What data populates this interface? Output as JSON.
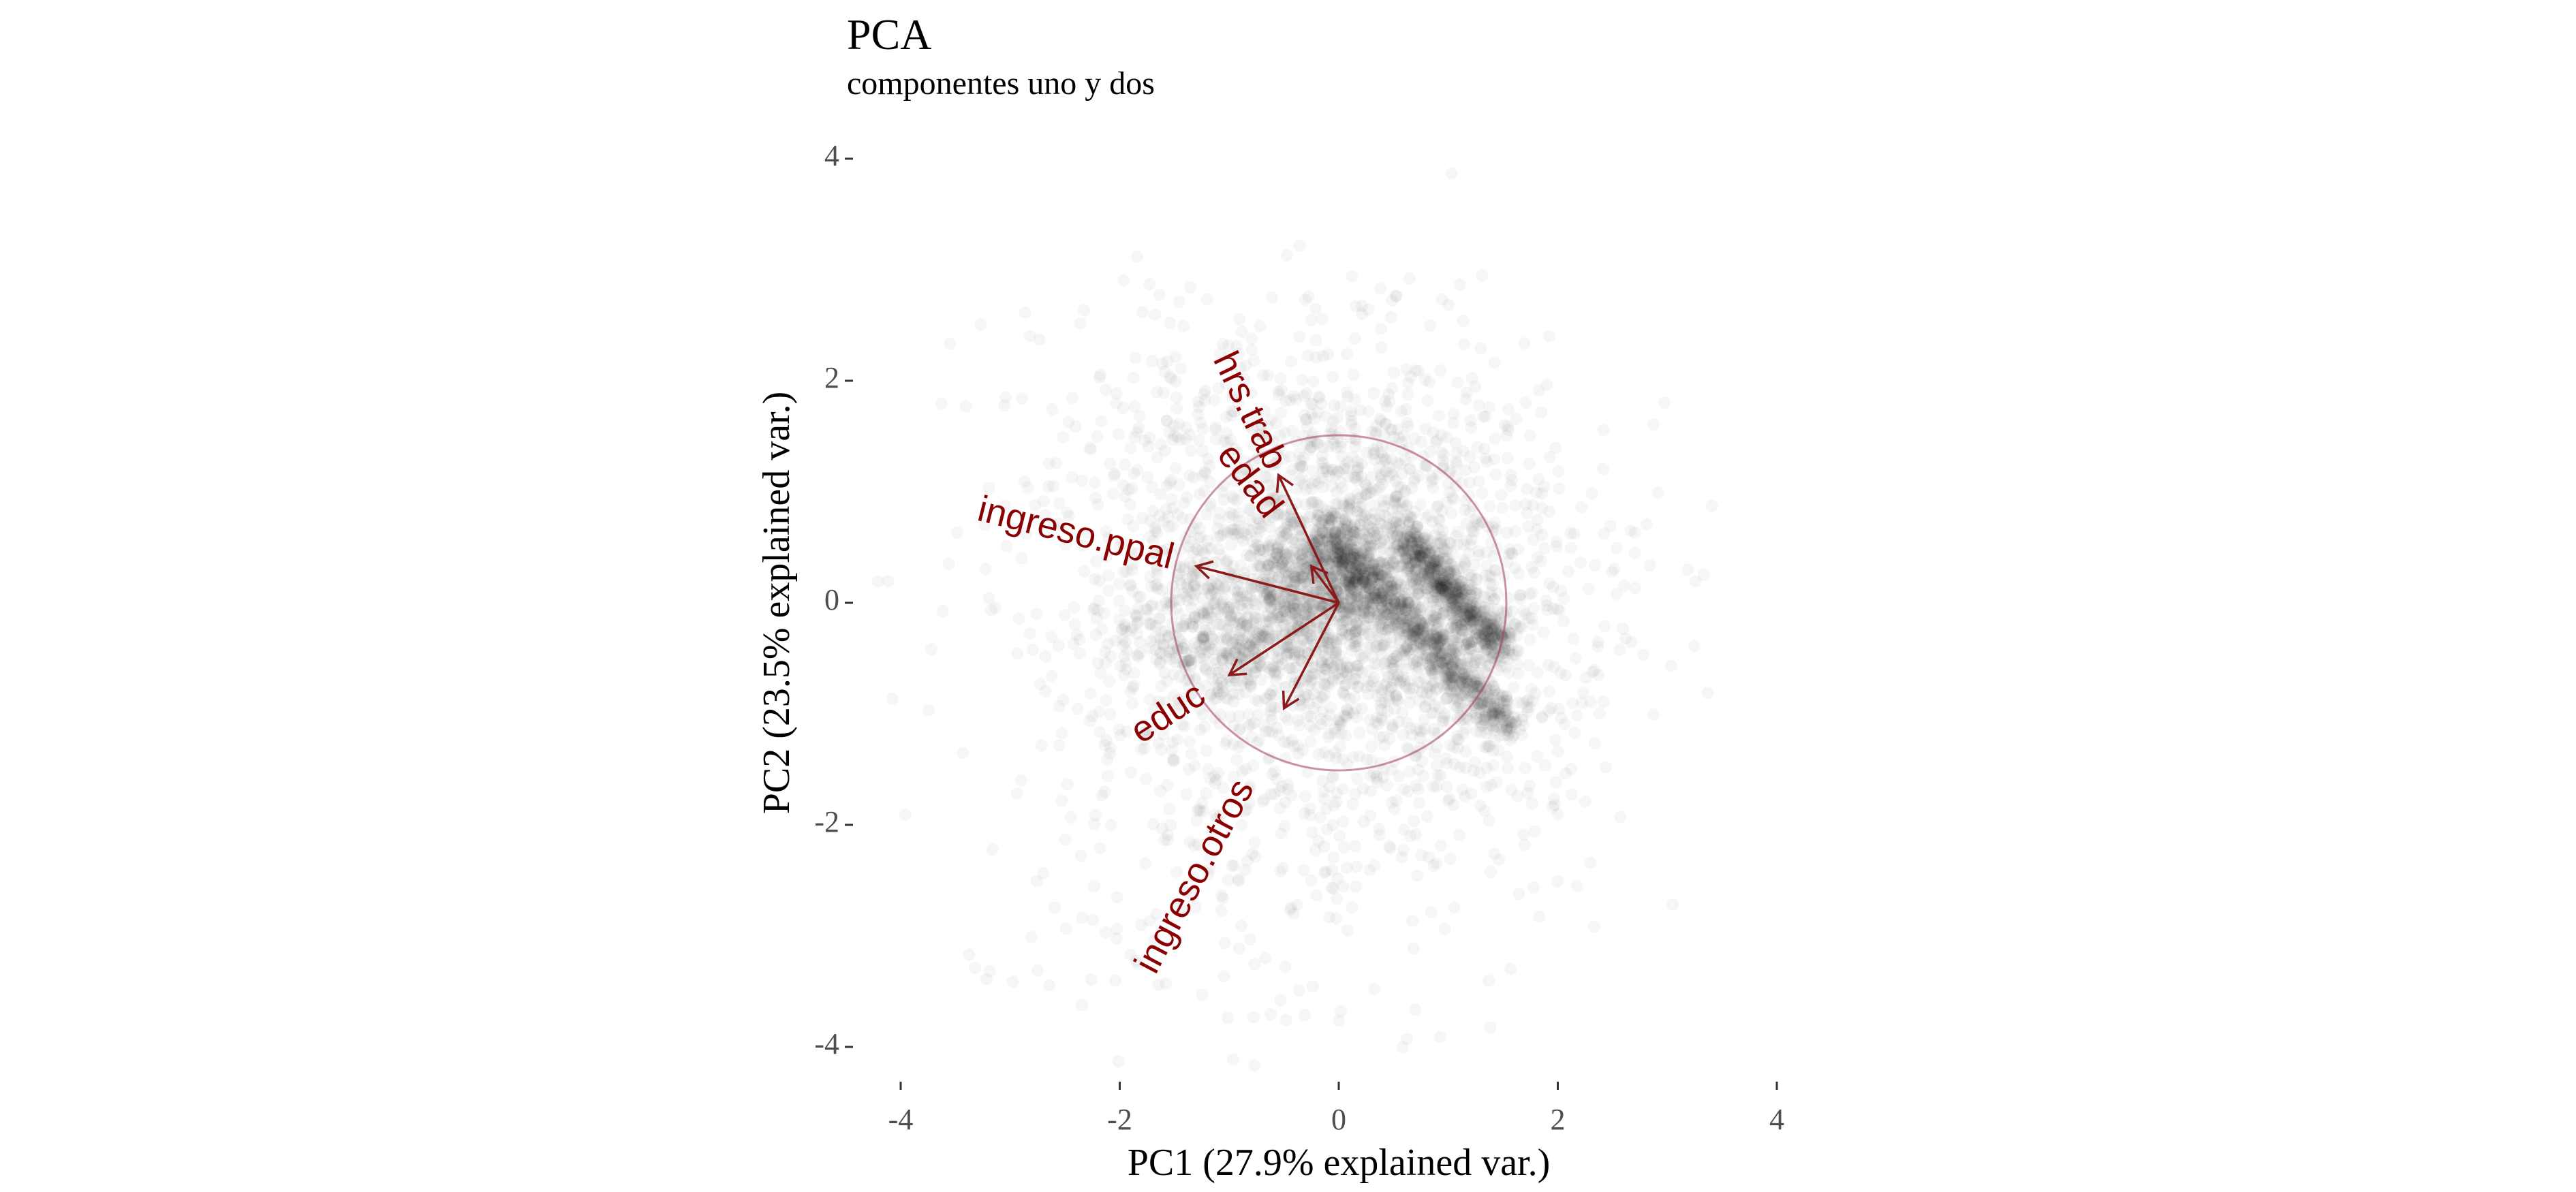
{
  "chart_data": {
    "type": "scatter",
    "title": "PCA",
    "subtitle": "componentes uno y dos",
    "xlabel": "PC1 (27.9% explained var.)",
    "ylabel": "PC2 (23.5% explained var.)",
    "xlim": [
      -4.4,
      4.4
    ],
    "ylim": [
      -4.2,
      4.3
    ],
    "xticks": [
      -4,
      -2,
      0,
      2,
      4
    ],
    "yticks": [
      -4,
      -2,
      0,
      2,
      4
    ],
    "xtick_labels": [
      "-4",
      "-2",
      "0",
      "2",
      "4"
    ],
    "ytick_labels": [
      "-4",
      "-2",
      "0",
      "2",
      "4"
    ],
    "grid": false,
    "legend": "none",
    "point_color": "#000000",
    "point_alpha": 0.035,
    "circle": {
      "center": [
        0,
        0
      ],
      "radius": 1.53,
      "color": "#a33a57"
    },
    "arrow_color": "#8b1a1a",
    "label_color": "#8b0000",
    "loadings": [
      {
        "name": "hrs.trab",
        "x": -0.55,
        "y": 1.15
      },
      {
        "name": "edad",
        "x": -0.25,
        "y": 0.33
      },
      {
        "name": "ingreso.ppal",
        "x": -1.3,
        "y": 0.33
      },
      {
        "name": "educ",
        "x": -1.0,
        "y": -0.65
      },
      {
        "name": "ingreso.otros",
        "x": -0.5,
        "y": -0.95
      }
    ]
  }
}
